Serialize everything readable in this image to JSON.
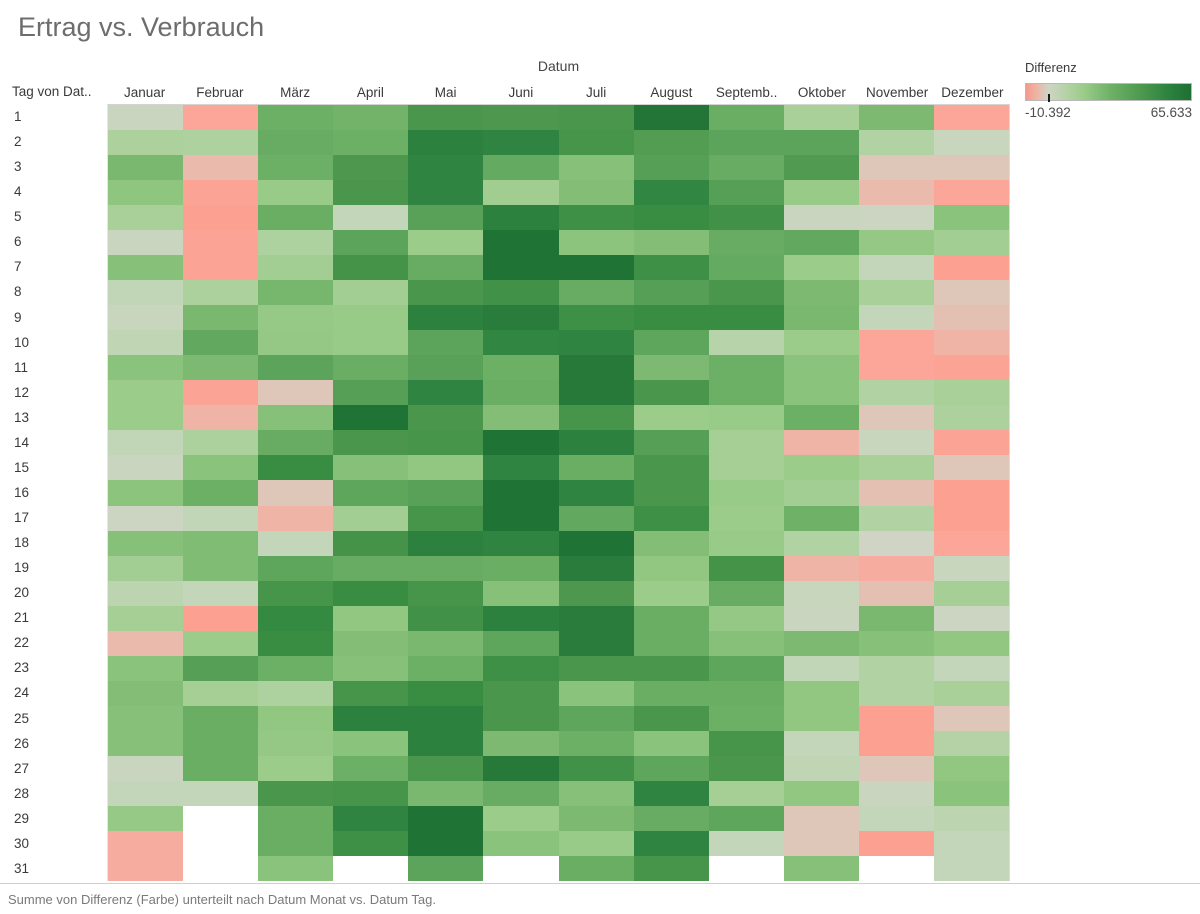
{
  "title": "Ertrag vs. Verbrauch",
  "axis": {
    "column_axis_title": "Datum",
    "row_header": "Tag von Dat.."
  },
  "legend": {
    "title": "Differenz",
    "min_label": "-10.392",
    "max_label": "65.633"
  },
  "caption": "Summe von Differenz  (Farbe) unterteilt nach Datum Monat vs. Datum Tag.",
  "chart_data": {
    "type": "heatmap",
    "title": "Ertrag vs. Verbrauch",
    "measure": "Summe von Differenz",
    "columns": [
      "Januar",
      "Februar",
      "März",
      "April",
      "Mai",
      "Juni",
      "Juli",
      "August",
      "Septemb..",
      "Oktober",
      "November",
      "Dezember"
    ],
    "rows": [
      "1",
      "2",
      "3",
      "4",
      "5",
      "6",
      "7",
      "8",
      "9",
      "10",
      "11",
      "12",
      "13",
      "14",
      "15",
      "16",
      "17",
      "18",
      "19",
      "20",
      "21",
      "22",
      "23",
      "24",
      "25",
      "26",
      "27",
      "28",
      "29",
      "30",
      "31"
    ],
    "color_scale": {
      "domain_min": -10.392,
      "domain_mid": 0,
      "domain_max": 65.633,
      "min_color": "#fc9f91",
      "mid_color": "#cfd4c5",
      "max_color": "#1b6f30",
      "stops": [
        {
          "value": -10.392,
          "rgb": [
            252,
            159,
            145
          ]
        },
        {
          "value": -8,
          "rgb": [
            251,
            166,
            152
          ]
        },
        {
          "value": -6,
          "rgb": [
            240,
            180,
            167
          ]
        },
        {
          "value": -3,
          "rgb": [
            222,
            198,
            184
          ]
        },
        {
          "value": 0,
          "rgb": [
            207,
            212,
            197
          ]
        },
        {
          "value": 4,
          "rgb": [
            196,
            214,
            186
          ]
        },
        {
          "value": 14,
          "rgb": [
            169,
            208,
            153
          ]
        },
        {
          "value": 19,
          "rgb": [
            155,
            204,
            138
          ]
        },
        {
          "value": 26,
          "rgb": [
            138,
            195,
            123
          ]
        },
        {
          "value": 30,
          "rgb": [
            125,
            185,
            113
          ]
        },
        {
          "value": 36,
          "rgb": [
            108,
            176,
            101
          ]
        },
        {
          "value": 41,
          "rgb": [
            95,
            166,
            93
          ]
        },
        {
          "value": 48,
          "rgb": [
            74,
            150,
            76
          ]
        },
        {
          "value": 54,
          "rgb": [
            56,
            141,
            67
          ]
        },
        {
          "value": 57,
          "rgb": [
            46,
            132,
            64
          ]
        },
        {
          "value": 61,
          "rgb": [
            39,
            121,
            58
          ]
        },
        {
          "value": 65.633,
          "rgb": [
            27,
            111,
            48
          ]
        }
      ]
    },
    "values": [
      [
        2,
        -8,
        36,
        34,
        48,
        47,
        48,
        63,
        37,
        14,
        30,
        -8
      ],
      [
        13,
        12,
        38,
        36,
        58,
        57,
        49,
        45,
        42,
        42,
        11,
        3
      ],
      [
        31,
        -5,
        36,
        47,
        57,
        39,
        27,
        44,
        38,
        46,
        -3,
        -3
      ],
      [
        24,
        -9,
        20,
        48,
        57,
        17,
        28,
        56,
        44,
        20,
        -5,
        -8
      ],
      [
        14,
        -10,
        37,
        4,
        43,
        58,
        52,
        54,
        51,
        2,
        1,
        26
      ],
      [
        2,
        -9,
        12,
        42,
        19,
        64,
        25,
        28,
        38,
        40,
        22,
        16
      ],
      [
        27,
        -9,
        16,
        50,
        38,
        64,
        64,
        52,
        39,
        19,
        4,
        -10
      ],
      [
        5,
        13,
        32,
        16,
        48,
        51,
        38,
        44,
        48,
        30,
        14,
        -3
      ],
      [
        3,
        31,
        21,
        20,
        58,
        60,
        52,
        54,
        54,
        31,
        4,
        -4
      ],
      [
        6,
        40,
        22,
        20,
        42,
        56,
        57,
        41,
        9,
        19,
        -8,
        -6
      ],
      [
        26,
        30,
        42,
        37,
        43,
        36,
        61,
        30,
        36,
        26,
        -8,
        -9
      ],
      [
        19,
        -9,
        -3,
        44,
        57,
        37,
        61,
        48,
        36,
        26,
        11,
        14
      ],
      [
        19,
        -6,
        27,
        64,
        48,
        28,
        49,
        19,
        20,
        36,
        -3,
        13
      ],
      [
        5,
        13,
        38,
        48,
        49,
        64,
        58,
        44,
        15,
        -6,
        3,
        -9
      ],
      [
        2,
        26,
        54,
        27,
        23,
        57,
        37,
        48,
        15,
        19,
        14,
        -3
      ],
      [
        25,
        36,
        -3,
        41,
        43,
        64,
        57,
        48,
        20,
        16,
        -4,
        -10
      ],
      [
        1,
        5,
        -6,
        16,
        49,
        64,
        40,
        52,
        19,
        35,
        11,
        -10
      ],
      [
        27,
        29,
        4,
        50,
        58,
        57,
        64,
        28,
        20,
        11,
        0,
        -8
      ],
      [
        16,
        29,
        41,
        38,
        38,
        37,
        60,
        23,
        50,
        -6,
        -7,
        3
      ],
      [
        7,
        4,
        49,
        54,
        49,
        27,
        47,
        19,
        38,
        3,
        -4,
        15
      ],
      [
        15,
        -10,
        55,
        23,
        51,
        58,
        60,
        37,
        22,
        2,
        31,
        1
      ],
      [
        -5,
        19,
        54,
        28,
        31,
        41,
        60,
        37,
        27,
        30,
        27,
        23
      ],
      [
        26,
        44,
        36,
        27,
        36,
        52,
        48,
        48,
        41,
        5,
        11,
        4
      ],
      [
        28,
        15,
        12,
        49,
        54,
        48,
        26,
        37,
        37,
        23,
        11,
        14
      ],
      [
        27,
        37,
        23,
        58,
        58,
        48,
        41,
        48,
        36,
        23,
        -10,
        -3
      ],
      [
        27,
        37,
        22,
        26,
        58,
        30,
        36,
        26,
        49,
        4,
        -10,
        10
      ],
      [
        2,
        37,
        19,
        36,
        48,
        61,
        51,
        41,
        48,
        6,
        -3,
        23
      ],
      [
        4,
        4,
        48,
        49,
        31,
        38,
        27,
        57,
        15,
        23,
        2,
        26
      ],
      [
        21,
        null,
        37,
        57,
        64,
        19,
        30,
        38,
        41,
        -3,
        4,
        7
      ],
      [
        -7,
        null,
        37,
        52,
        64,
        26,
        20,
        57,
        4,
        -3,
        -10,
        4
      ],
      [
        -7,
        null,
        26,
        null,
        42,
        null,
        37,
        49,
        null,
        27,
        null,
        4
      ]
    ]
  }
}
